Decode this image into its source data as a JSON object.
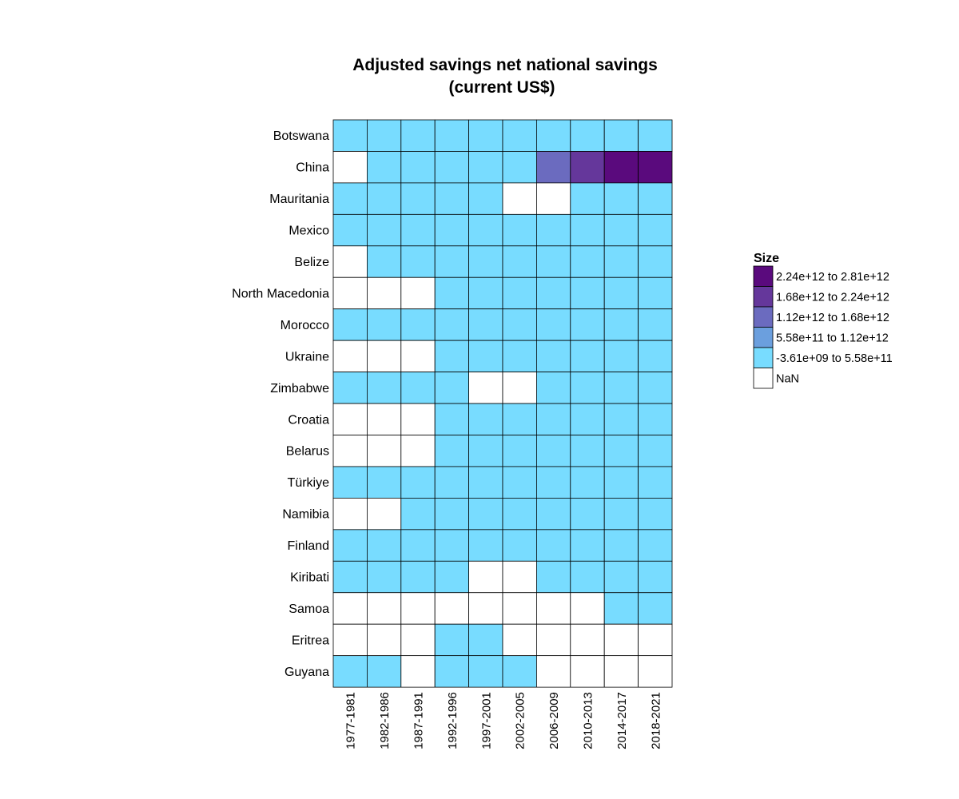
{
  "chart_data": {
    "type": "heatmap",
    "title_lines": [
      "Adjusted savings net national savings",
      "(current US$)"
    ],
    "xlabel": "",
    "ylabel": "",
    "x": [
      "1977-1981",
      "1982-1986",
      "1987-1991",
      "1992-1996",
      "1997-2001",
      "2002-2005",
      "2006-2009",
      "2010-2013",
      "2014-2017",
      "2018-2021"
    ],
    "y": [
      "Botswana",
      "China",
      "Mauritania",
      "Mexico",
      "Belize",
      "North Macedonia",
      "Morocco",
      "Ukraine",
      "Zimbabwe",
      "Croatia",
      "Belarus",
      "Türkiye",
      "Namibia",
      "Finland",
      "Kiribati",
      "Samoa",
      "Eritrea",
      "Guyana"
    ],
    "bins": [
      {
        "label": "2.24e+12 to 2.81e+12",
        "color": "#5a0a7d"
      },
      {
        "label": "1.68e+12 to 2.24e+12",
        "color": "#65379b"
      },
      {
        "label": "1.12e+12 to 1.68e+12",
        "color": "#6b6bbf"
      },
      {
        "label": "5.58e+11 to 1.12e+12",
        "color": "#6b9fde"
      },
      {
        "label": "-3.61e+09 to 5.58e+11",
        "color": "#78dcff"
      },
      {
        "label": "NaN",
        "color": "#ffffff"
      }
    ],
    "legend_title": "Size",
    "legend_position": "right",
    "cell_bins": [
      [
        4,
        4,
        4,
        4,
        4,
        4,
        4,
        4,
        4,
        4
      ],
      [
        5,
        4,
        4,
        4,
        4,
        4,
        2,
        1,
        0,
        0
      ],
      [
        4,
        4,
        4,
        4,
        4,
        5,
        5,
        4,
        4,
        4
      ],
      [
        4,
        4,
        4,
        4,
        4,
        4,
        4,
        4,
        4,
        4
      ],
      [
        5,
        4,
        4,
        4,
        4,
        4,
        4,
        4,
        4,
        4
      ],
      [
        5,
        5,
        5,
        4,
        4,
        4,
        4,
        4,
        4,
        4
      ],
      [
        4,
        4,
        4,
        4,
        4,
        4,
        4,
        4,
        4,
        4
      ],
      [
        5,
        5,
        5,
        4,
        4,
        4,
        4,
        4,
        4,
        4
      ],
      [
        4,
        4,
        4,
        4,
        5,
        5,
        4,
        4,
        4,
        4
      ],
      [
        5,
        5,
        5,
        4,
        4,
        4,
        4,
        4,
        4,
        4
      ],
      [
        5,
        5,
        5,
        4,
        4,
        4,
        4,
        4,
        4,
        4
      ],
      [
        4,
        4,
        4,
        4,
        4,
        4,
        4,
        4,
        4,
        4
      ],
      [
        5,
        5,
        4,
        4,
        4,
        4,
        4,
        4,
        4,
        4
      ],
      [
        4,
        4,
        4,
        4,
        4,
        4,
        4,
        4,
        4,
        4
      ],
      [
        4,
        4,
        4,
        4,
        5,
        5,
        4,
        4,
        4,
        4
      ],
      [
        5,
        5,
        5,
        5,
        5,
        5,
        5,
        5,
        4,
        4
      ],
      [
        5,
        5,
        5,
        4,
        4,
        5,
        5,
        5,
        5,
        5
      ],
      [
        4,
        4,
        5,
        4,
        4,
        4,
        5,
        5,
        5,
        5
      ]
    ]
  }
}
